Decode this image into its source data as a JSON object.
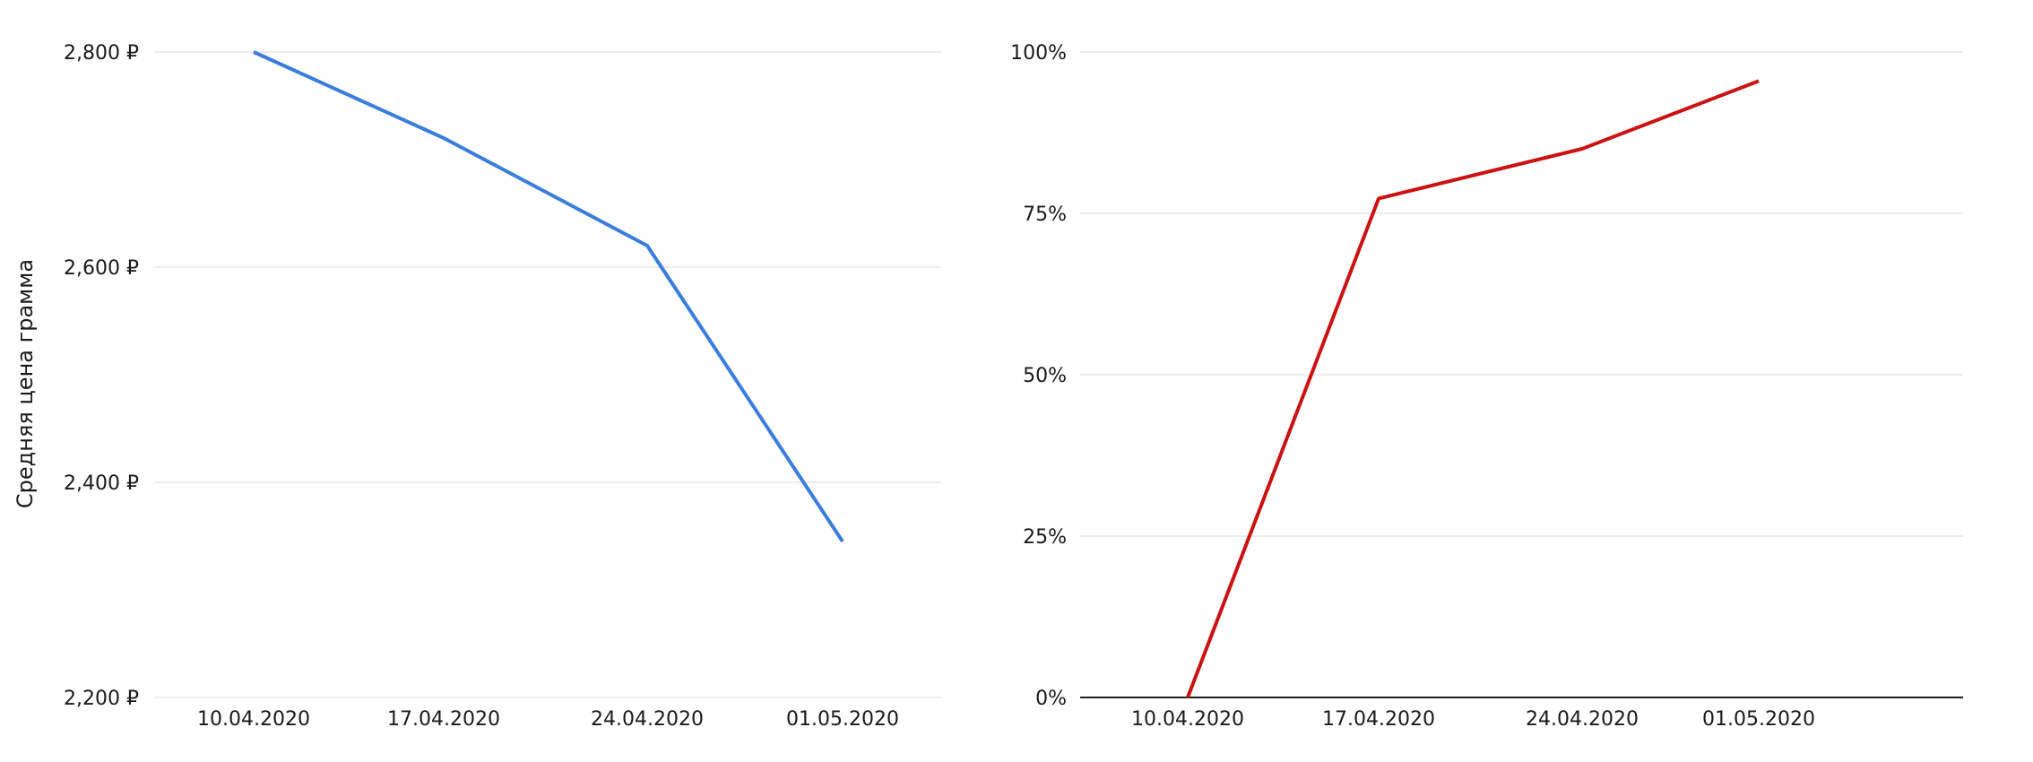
{
  "chart_data": [
    {
      "type": "line",
      "ylabel": "Средняя цена грамма",
      "xlabel": "",
      "categories": [
        "10.04.2020",
        "17.04.2020",
        "24.04.2020",
        "01.05.2020"
      ],
      "yticks": [
        "2,200 ₽",
        "2,400 ₽",
        "2,600 ₽",
        "2,800 ₽"
      ],
      "ylim": [
        2200,
        2800
      ],
      "grid": true,
      "series": [
        {
          "values": [
            2800,
            2720,
            2620,
            2345
          ],
          "color": "#3b7ddd"
        }
      ]
    },
    {
      "type": "line",
      "ylabel": "",
      "xlabel": "",
      "categories": [
        "10.04.2020",
        "17.04.2020",
        "24.04.2020",
        "01.05.2020"
      ],
      "yticks": [
        "0%",
        "25%",
        "50%",
        "75%",
        "100%"
      ],
      "ylim": [
        0,
        100
      ],
      "grid": true,
      "series": [
        {
          "values": [
            0,
            77.3,
            85,
            95.5
          ],
          "color": "#cc1111"
        }
      ]
    }
  ]
}
